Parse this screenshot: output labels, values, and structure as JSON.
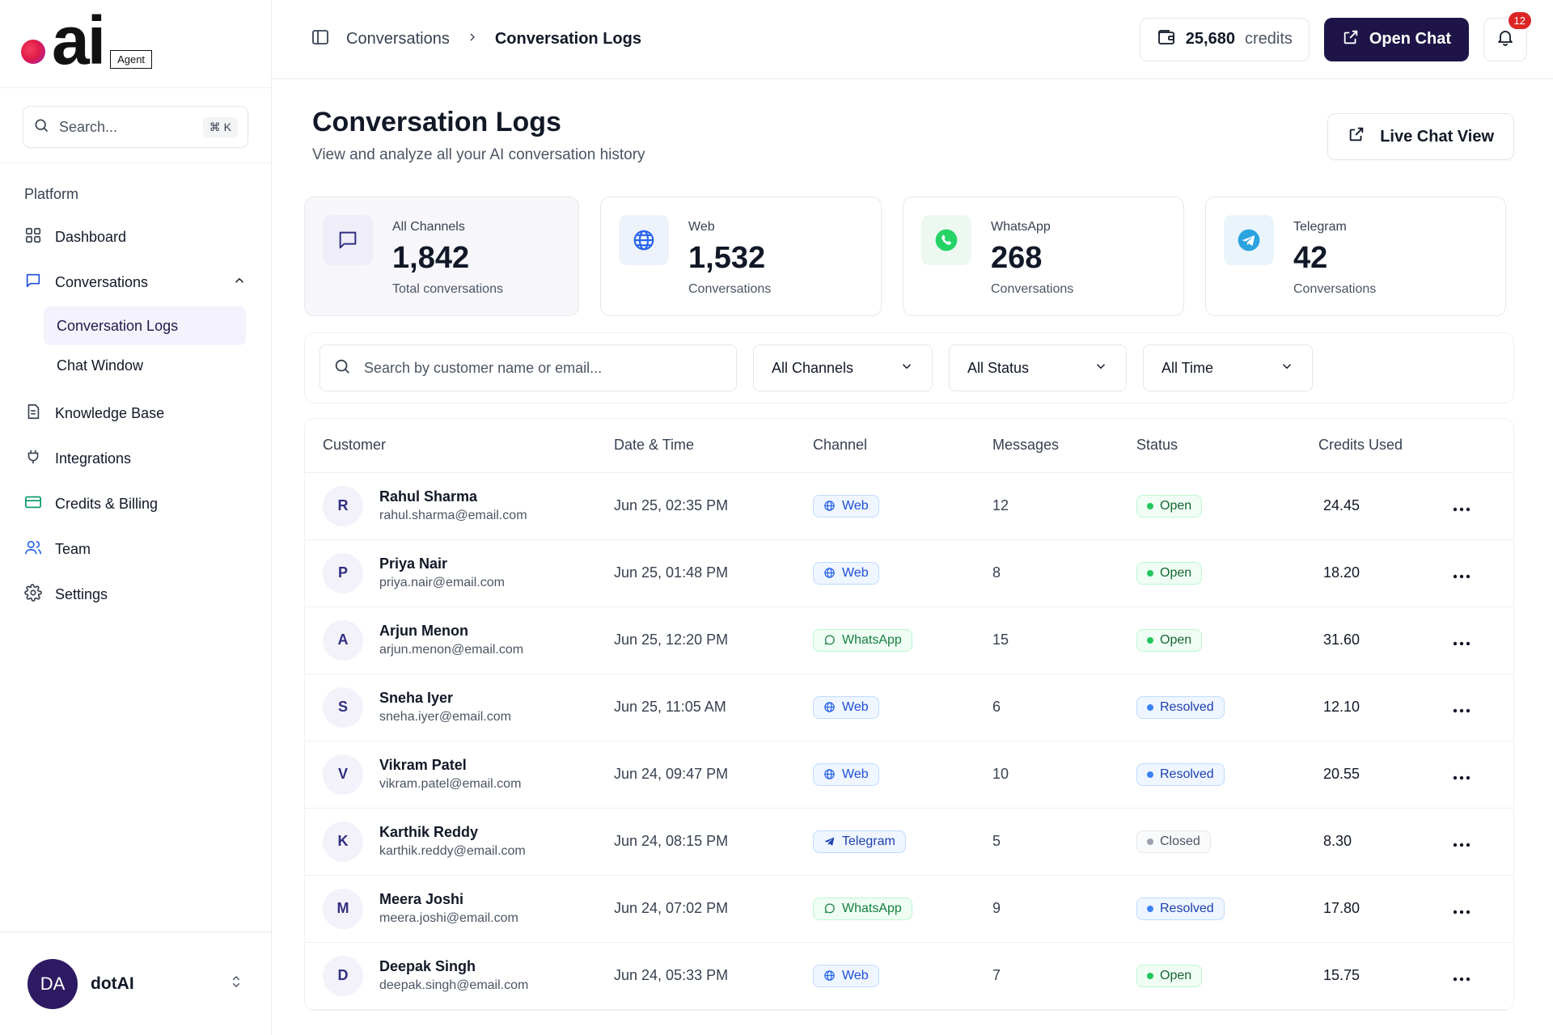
{
  "brand": {
    "word": "ai",
    "badge": "Agent"
  },
  "sidebar": {
    "search_placeholder": "Search...",
    "search_shortcut": "⌘ K",
    "section_label": "Platform",
    "items": [
      {
        "label": "Dashboard",
        "icon": "grid-icon"
      },
      {
        "label": "Conversations",
        "icon": "chat-icon"
      },
      {
        "label": "Knowledge Base",
        "icon": "document-icon"
      },
      {
        "label": "Integrations",
        "icon": "plug-icon"
      },
      {
        "label": "Credits & Billing",
        "icon": "card-icon"
      },
      {
        "label": "Team",
        "icon": "users-icon"
      },
      {
        "label": "Settings",
        "icon": "gear-icon"
      }
    ],
    "sub_items": [
      {
        "label": "Conversation Logs",
        "active": true
      },
      {
        "label": "Chat Window",
        "active": false
      }
    ],
    "user": {
      "initials": "DA",
      "name": "dotAI"
    }
  },
  "topbar": {
    "breadcrumb_parent": "Conversations",
    "breadcrumb_current": "Conversation Logs",
    "credits_value": "25,680",
    "credits_unit": "credits",
    "open_chat_label": "Open Chat",
    "notification_count": "12"
  },
  "page": {
    "title": "Conversation Logs",
    "subtitle": "View and analyze all your AI conversation history",
    "live_chat_label": "Live Chat View"
  },
  "stats": [
    {
      "label": "All Channels",
      "value": "1,842",
      "sub": "Total conversations",
      "icon": "chat-bubble-icon"
    },
    {
      "label": "Web",
      "value": "1,532",
      "sub": "Conversations",
      "icon": "globe-icon"
    },
    {
      "label": "WhatsApp",
      "value": "268",
      "sub": "Conversations",
      "icon": "whatsapp-icon"
    },
    {
      "label": "Telegram",
      "value": "42",
      "sub": "Conversations",
      "icon": "telegram-icon"
    }
  ],
  "filters": {
    "search_placeholder": "Search by customer name or email...",
    "channel": "All Channels",
    "status": "All Status",
    "time": "All Time"
  },
  "table": {
    "headers": {
      "customer": "Customer",
      "datetime": "Date & Time",
      "channel": "Channel",
      "messages": "Messages",
      "status": "Status",
      "credits": "Credits Used"
    },
    "rows": [
      {
        "initial": "R",
        "name": "Rahul Sharma",
        "email": "rahul.sharma@email.com",
        "datetime": "Jun 25, 02:35 PM",
        "channel": "Web",
        "messages": "12",
        "status": "Open",
        "credits": "24.45"
      },
      {
        "initial": "P",
        "name": "Priya Nair",
        "email": "priya.nair@email.com",
        "datetime": "Jun 25, 01:48 PM",
        "channel": "Web",
        "messages": "8",
        "status": "Open",
        "credits": "18.20"
      },
      {
        "initial": "A",
        "name": "Arjun Menon",
        "email": "arjun.menon@email.com",
        "datetime": "Jun 25, 12:20 PM",
        "channel": "WhatsApp",
        "messages": "15",
        "status": "Open",
        "credits": "31.60"
      },
      {
        "initial": "S",
        "name": "Sneha Iyer",
        "email": "sneha.iyer@email.com",
        "datetime": "Jun 25, 11:05 AM",
        "channel": "Web",
        "messages": "6",
        "status": "Resolved",
        "credits": "12.10"
      },
      {
        "initial": "V",
        "name": "Vikram Patel",
        "email": "vikram.patel@email.com",
        "datetime": "Jun 24, 09:47 PM",
        "channel": "Web",
        "messages": "10",
        "status": "Resolved",
        "credits": "20.55"
      },
      {
        "initial": "K",
        "name": "Karthik Reddy",
        "email": "karthik.reddy@email.com",
        "datetime": "Jun 24, 08:15 PM",
        "channel": "Telegram",
        "messages": "5",
        "status": "Closed",
        "credits": "8.30"
      },
      {
        "initial": "M",
        "name": "Meera Joshi",
        "email": "meera.joshi@email.com",
        "datetime": "Jun 24, 07:02 PM",
        "channel": "WhatsApp",
        "messages": "9",
        "status": "Resolved",
        "credits": "17.80"
      },
      {
        "initial": "D",
        "name": "Deepak Singh",
        "email": "deepak.singh@email.com",
        "datetime": "Jun 24, 05:33 PM",
        "channel": "Web",
        "messages": "7",
        "status": "Open",
        "credits": "15.75"
      }
    ]
  },
  "colors": {
    "primary": "#1f1447",
    "active_nav_bg": "#f4f2fd",
    "open": "#22c55e",
    "resolved": "#3b82f6",
    "closed": "#9ca3af",
    "whatsapp": "#25d366",
    "telegram": "#2aa3e0",
    "web": "#2563eb"
  }
}
